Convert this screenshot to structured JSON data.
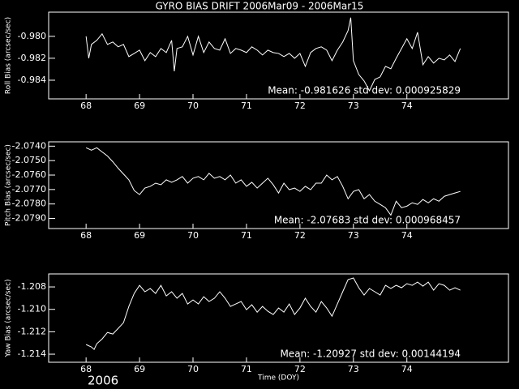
{
  "chart_data": [
    {
      "type": "line",
      "title": "GYRO BIAS DRIFT 2006Mar09 - 2006Mar15",
      "ylabel": "Roll Bias (arcsec/sec)",
      "annotation": "Mean: -0.981626 std dev: 0.000925829",
      "color": "#ffffff",
      "xlim": [
        67.3,
        75.9
      ],
      "xticks": [
        68,
        69,
        70,
        71,
        72,
        73,
        74
      ],
      "ylim": [
        -0.9857,
        -0.9778
      ],
      "yticks": [
        {
          "value": -0.98,
          "label": "-0.980"
        },
        -0.982,
        -0.984
      ],
      "x": [
        68.0,
        68.05,
        68.1,
        68.2,
        68.3,
        68.4,
        68.5,
        68.6,
        68.7,
        68.8,
        68.9,
        69.0,
        69.1,
        69.2,
        69.3,
        69.4,
        69.5,
        69.6,
        69.65,
        69.7,
        69.8,
        69.9,
        70.0,
        70.1,
        70.2,
        70.3,
        70.4,
        70.5,
        70.6,
        70.7,
        70.8,
        70.9,
        71.0,
        71.1,
        71.2,
        71.3,
        71.4,
        71.5,
        71.6,
        71.7,
        71.8,
        71.9,
        72.0,
        72.1,
        72.2,
        72.3,
        72.4,
        72.5,
        72.6,
        72.7,
        72.8,
        72.9,
        72.95,
        73.0,
        73.1,
        73.2,
        73.3,
        73.4,
        73.5,
        73.6,
        73.7,
        73.8,
        73.9,
        74.0,
        74.1,
        74.2,
        74.3,
        74.4,
        74.5,
        74.6,
        74.7,
        74.8,
        74.9,
        75.0
      ],
      "values": [
        -0.98,
        -0.982,
        -0.98074,
        -0.98037,
        -0.97978,
        -0.98074,
        -0.98052,
        -0.98096,
        -0.98074,
        -0.98185,
        -0.98156,
        -0.98126,
        -0.98222,
        -0.98148,
        -0.98185,
        -0.98111,
        -0.98148,
        -0.98037,
        -0.98319,
        -0.98111,
        -0.98096,
        -0.98,
        -0.9817,
        -0.98,
        -0.98148,
        -0.98052,
        -0.98111,
        -0.98126,
        -0.98022,
        -0.98156,
        -0.98111,
        -0.98126,
        -0.98148,
        -0.98096,
        -0.98126,
        -0.9817,
        -0.98126,
        -0.98148,
        -0.98156,
        -0.98185,
        -0.98156,
        -0.982,
        -0.98156,
        -0.98274,
        -0.98148,
        -0.98111,
        -0.98096,
        -0.98126,
        -0.98222,
        -0.98126,
        -0.98052,
        -0.97948,
        -0.9783,
        -0.98222,
        -0.98348,
        -0.98407,
        -0.98496,
        -0.98393,
        -0.9837,
        -0.98274,
        -0.98296,
        -0.982,
        -0.98111,
        -0.98022,
        -0.98111,
        -0.97963,
        -0.98259,
        -0.98185,
        -0.98244,
        -0.982,
        -0.98215,
        -0.9817,
        -0.9823,
        -0.98111
      ]
    },
    {
      "type": "line",
      "ylabel": "Pitch Bias (arcsec/sec)",
      "annotation": "Mean: -2.07683 std dev: 0.000968457",
      "color": "#ffffff",
      "xlim": [
        67.3,
        75.9
      ],
      "xticks": [
        68,
        69,
        70,
        71,
        72,
        73,
        74
      ],
      "ylim": [
        -2.0797,
        -2.0737
      ],
      "yticks": [
        {
          "value": -2.074,
          "label": "-2.0740"
        },
        {
          "value": -2.075,
          "label": "-2.0750"
        },
        {
          "value": -2.076,
          "label": "-2.0760"
        },
        {
          "value": -2.077,
          "label": "-2.0770"
        },
        {
          "value": -2.078,
          "label": "-2.0780"
        },
        {
          "value": -2.079,
          "label": "-2.0790"
        }
      ],
      "x": [
        68.0,
        68.1,
        68.2,
        68.3,
        68.4,
        68.5,
        68.6,
        68.7,
        68.8,
        68.9,
        69.0,
        69.1,
        69.2,
        69.3,
        69.4,
        69.5,
        69.6,
        69.7,
        69.8,
        69.9,
        70.0,
        70.1,
        70.2,
        70.3,
        70.4,
        70.5,
        70.6,
        70.7,
        70.8,
        70.9,
        71.0,
        71.1,
        71.2,
        71.3,
        71.4,
        71.5,
        71.6,
        71.7,
        71.8,
        71.9,
        72.0,
        72.1,
        72.2,
        72.3,
        72.4,
        72.5,
        72.6,
        72.7,
        72.8,
        72.9,
        73.0,
        73.1,
        73.2,
        73.3,
        73.4,
        73.5,
        73.6,
        73.7,
        73.8,
        73.9,
        74.0,
        74.1,
        74.2,
        74.3,
        74.4,
        74.5,
        74.6,
        74.7,
        74.8,
        74.9,
        75.0
      ],
      "values": [
        -2.07411,
        -2.07428,
        -2.07411,
        -2.0744,
        -2.07468,
        -2.07508,
        -2.07553,
        -2.07593,
        -2.07633,
        -2.07707,
        -2.07735,
        -2.0769,
        -2.07678,
        -2.07656,
        -2.07667,
        -2.07633,
        -2.0765,
        -2.07633,
        -2.0761,
        -2.07656,
        -2.07622,
        -2.0761,
        -2.07633,
        -2.07588,
        -2.07622,
        -2.0761,
        -2.07633,
        -2.076,
        -2.07656,
        -2.07633,
        -2.07678,
        -2.0765,
        -2.0769,
        -2.07656,
        -2.07622,
        -2.07667,
        -2.07724,
        -2.07656,
        -2.07701,
        -2.0769,
        -2.07713,
        -2.07678,
        -2.07701,
        -2.07656,
        -2.07656,
        -2.076,
        -2.07633,
        -2.0761,
        -2.07678,
        -2.07764,
        -2.07713,
        -2.07701,
        -2.07764,
        -2.07735,
        -2.07781,
        -2.07803,
        -2.07826,
        -2.07877,
        -2.07781,
        -2.07826,
        -2.07815,
        -2.07792,
        -2.07803,
        -2.07769,
        -2.07792,
        -2.07764,
        -2.07781,
        -2.07747,
        -2.07735,
        -2.07724,
        -2.07713
      ]
    },
    {
      "type": "line",
      "ylabel": "Yaw Bias (arcsec/sec)",
      "xlabel": "Time (DOY)",
      "annotation": "Mean: -1.20927 std dev: 0.00144194",
      "color": "#ffffff",
      "xlim": [
        67.3,
        75.9
      ],
      "xticks": [
        68,
        69,
        70,
        71,
        72,
        73,
        74
      ],
      "ylim": [
        -1.21472,
        -1.20684
      ],
      "yticks": [
        -1.208,
        {
          "value": -1.21,
          "label": "-1.210"
        },
        -1.212,
        -1.214
      ],
      "x": [
        68.0,
        68.1,
        68.15,
        68.2,
        68.3,
        68.4,
        68.5,
        68.6,
        68.7,
        68.8,
        68.9,
        69.0,
        69.1,
        69.2,
        69.3,
        69.4,
        69.5,
        69.6,
        69.7,
        69.8,
        69.9,
        70.0,
        70.1,
        70.2,
        70.3,
        70.4,
        70.5,
        70.6,
        70.7,
        70.8,
        70.9,
        71.0,
        71.1,
        71.2,
        71.3,
        71.4,
        71.5,
        71.6,
        71.7,
        71.8,
        71.9,
        72.0,
        72.1,
        72.2,
        72.3,
        72.4,
        72.5,
        72.6,
        72.7,
        72.8,
        72.9,
        73.0,
        73.1,
        73.2,
        73.3,
        73.4,
        73.5,
        73.6,
        73.7,
        73.8,
        73.9,
        74.0,
        74.1,
        74.2,
        74.3,
        74.4,
        74.5,
        74.6,
        74.7,
        74.8,
        74.9,
        75.0
      ],
      "values": [
        -1.21314,
        -1.21336,
        -1.21358,
        -1.21307,
        -1.21264,
        -1.21206,
        -1.2122,
        -1.2117,
        -1.21119,
        -1.20974,
        -1.20858,
        -1.20786,
        -1.20843,
        -1.20814,
        -1.20858,
        -1.20786,
        -1.2088,
        -1.20843,
        -1.20901,
        -1.20858,
        -1.20952,
        -1.20916,
        -1.20952,
        -1.20887,
        -1.2093,
        -1.20901,
        -1.20843,
        -1.20901,
        -1.20974,
        -1.20952,
        -1.2093,
        -1.21003,
        -1.20959,
        -1.21025,
        -1.20974,
        -1.21017,
        -1.21046,
        -1.20988,
        -1.21025,
        -1.20952,
        -1.21046,
        -1.20988,
        -1.20901,
        -1.20974,
        -1.21025,
        -1.2093,
        -1.20988,
        -1.21061,
        -1.20952,
        -1.20843,
        -1.20735,
        -1.2072,
        -1.20807,
        -1.20872,
        -1.20814,
        -1.20843,
        -1.20872,
        -1.20786,
        -1.20814,
        -1.20786,
        -1.20807,
        -1.20771,
        -1.20786,
        -1.20757,
        -1.20793,
        -1.20757,
        -1.20829,
        -1.20771,
        -1.20786,
        -1.20829,
        -1.20807,
        -1.20829
      ]
    }
  ],
  "footer_text": "2006"
}
